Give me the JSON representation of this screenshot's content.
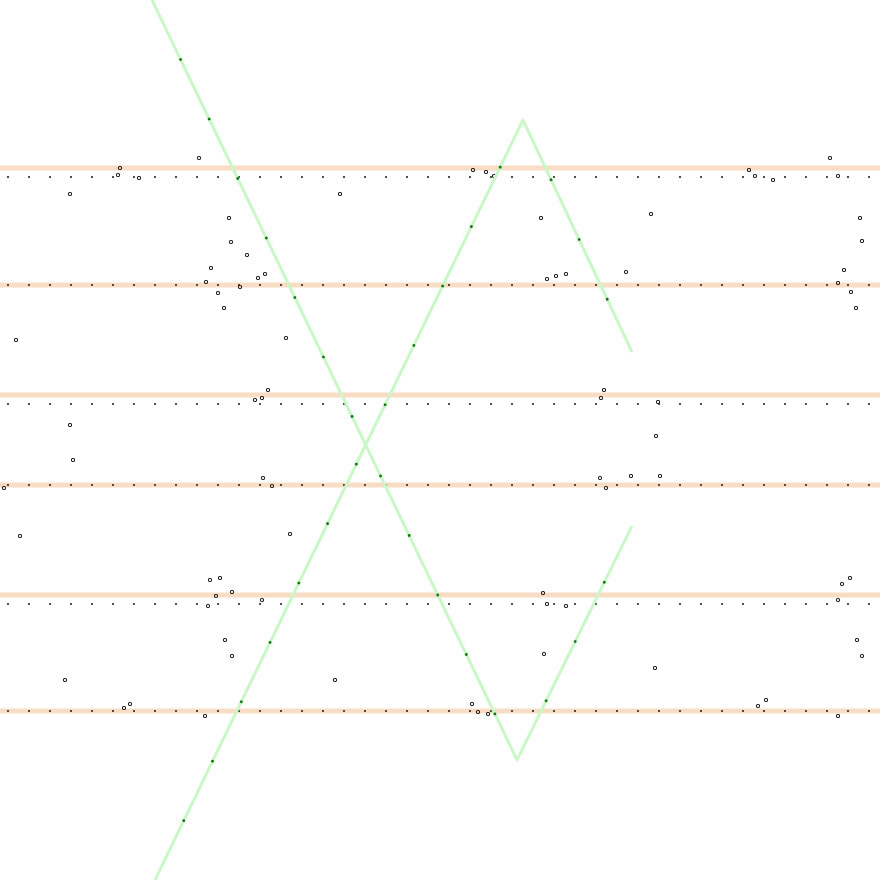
{
  "colors": {
    "background": "#ffffff",
    "band": "#f9dcc4",
    "band_tick": "#1a1a1a",
    "trace": "#c9f7c6",
    "trace_marker": "#0e7a0e",
    "noise": "#111111"
  },
  "bands": [
    {
      "id": "band-1"
    },
    {
      "id": "band-2"
    },
    {
      "id": "band-3"
    },
    {
      "id": "band-4"
    },
    {
      "id": "band-5"
    },
    {
      "id": "band-6"
    }
  ],
  "traces": [
    {
      "id": "trace-descending"
    },
    {
      "id": "trace-ascending"
    }
  ]
}
